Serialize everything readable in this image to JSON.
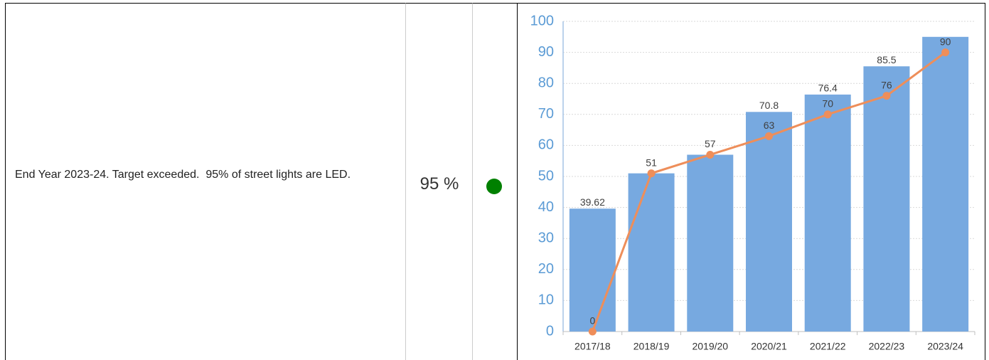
{
  "table": {
    "rows": [
      [
        "End Year 2023-24. Target exceeded.  95% of street lights are LED.",
        "95 %"
      ]
    ]
  },
  "status": {
    "color": "#008000"
  },
  "chart_data": {
    "type": "combo",
    "categories": [
      "2017/18",
      "2018/19",
      "2019/20",
      "2020/21",
      "2021/22",
      "2022/23",
      "2023/24"
    ],
    "series": [
      {
        "type": "bar",
        "color": "#77a9e0",
        "values": [
          39.62,
          51,
          57,
          70.8,
          76.4,
          85.5,
          95
        ],
        "value_labels": [
          "39.62",
          null,
          null,
          "70.8",
          "76.4",
          "85.5",
          null
        ]
      },
      {
        "type": "line",
        "color": "#ee8e5a",
        "values": [
          0,
          51,
          57,
          63,
          70,
          76,
          90
        ]
      }
    ],
    "ylim": [
      0,
      100
    ],
    "yticks": [
      0,
      10,
      20,
      30,
      40,
      50,
      60,
      70,
      80,
      90,
      100
    ],
    "grid": true
  }
}
